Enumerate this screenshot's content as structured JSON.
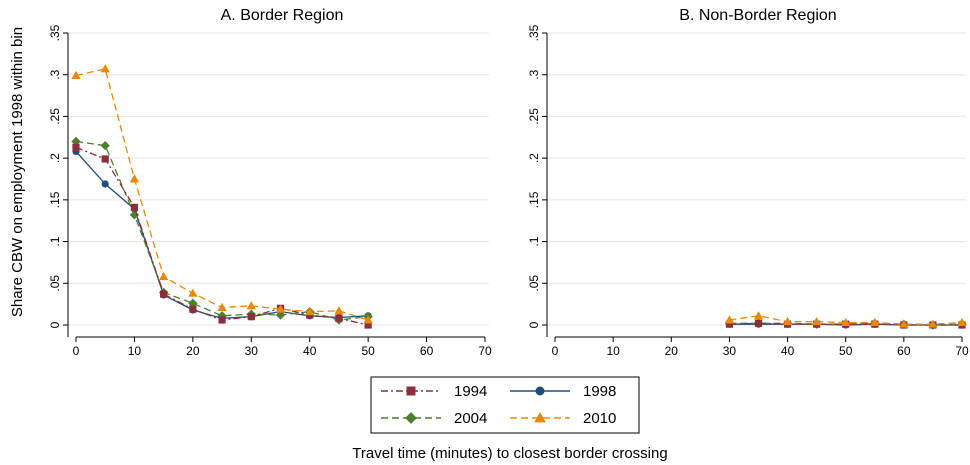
{
  "figure": {
    "ylabel": "Share CBW on employment 1998 within bin",
    "xlabel": "Travel time (minutes) to closest border crossing"
  },
  "legend": [
    {
      "name": "1994",
      "color": "#8B2F3A",
      "marker": "square",
      "dash": "dashdot"
    },
    {
      "name": "1998",
      "color": "#1F4E79",
      "marker": "circle",
      "dash": "solid"
    },
    {
      "name": "2004",
      "color": "#4F7F2E",
      "marker": "diamond",
      "dash": "dashed"
    },
    {
      "name": "2010",
      "color": "#E8890C",
      "marker": "triangle",
      "dash": "dashed"
    }
  ],
  "chart_data": [
    {
      "type": "line",
      "title": "A. Border Region",
      "xlim": [
        0,
        70
      ],
      "ylim": [
        0,
        0.35
      ],
      "xticks": [
        "0",
        "10",
        "20",
        "30",
        "40",
        "50",
        "60",
        "70"
      ],
      "yticks": [
        "0",
        ".05",
        ".1",
        ".15",
        ".2",
        ".25",
        ".3",
        ".35"
      ],
      "grid": true,
      "x": [
        0,
        5,
        10,
        15,
        20,
        25,
        30,
        35,
        40,
        45,
        50
      ],
      "series": [
        {
          "name": "1994",
          "values": [
            0.213,
            0.199,
            0.141,
            0.037,
            0.019,
            0.006,
            0.01,
            0.02,
            0.012,
            0.008,
            0.0
          ]
        },
        {
          "name": "1998",
          "values": [
            0.208,
            0.169,
            0.139,
            0.036,
            0.018,
            0.008,
            0.01,
            0.016,
            0.011,
            0.009,
            0.011
          ]
        },
        {
          "name": "2004",
          "values": [
            0.22,
            0.215,
            0.132,
            0.039,
            0.026,
            0.011,
            0.013,
            0.012,
            0.016,
            0.006,
            0.01
          ]
        },
        {
          "name": "2010",
          "values": [
            0.299,
            0.307,
            0.175,
            0.058,
            0.038,
            0.021,
            0.023,
            0.019,
            0.016,
            0.017,
            0.006
          ]
        }
      ]
    },
    {
      "type": "line",
      "title": "B. Non-Border Region",
      "xlim": [
        0,
        70
      ],
      "ylim": [
        0,
        0.35
      ],
      "xticks": [
        "0",
        "10",
        "20",
        "30",
        "40",
        "50",
        "60",
        "70"
      ],
      "yticks": [
        "0",
        ".05",
        ".1",
        ".15",
        ".2",
        ".25",
        ".3",
        ".35"
      ],
      "grid": true,
      "x": [
        30,
        35,
        40,
        45,
        50,
        55,
        60,
        65,
        70
      ],
      "series": [
        {
          "name": "1994",
          "values": [
            0.001,
            0.002,
            0.001,
            0.001,
            0.001,
            0.001,
            0.0,
            0.0,
            0.0
          ]
        },
        {
          "name": "1998",
          "values": [
            0.001,
            0.001,
            0.001,
            0.001,
            0.0,
            0.001,
            0.0,
            0.0,
            0.0
          ]
        },
        {
          "name": "2004",
          "values": [
            0.002,
            0.002,
            0.002,
            0.001,
            0.001,
            0.002,
            0.001,
            0.0,
            0.001
          ]
        },
        {
          "name": "2010",
          "values": [
            0.006,
            0.011,
            0.004,
            0.004,
            0.003,
            0.003,
            0.001,
            0.001,
            0.003
          ]
        }
      ]
    }
  ]
}
